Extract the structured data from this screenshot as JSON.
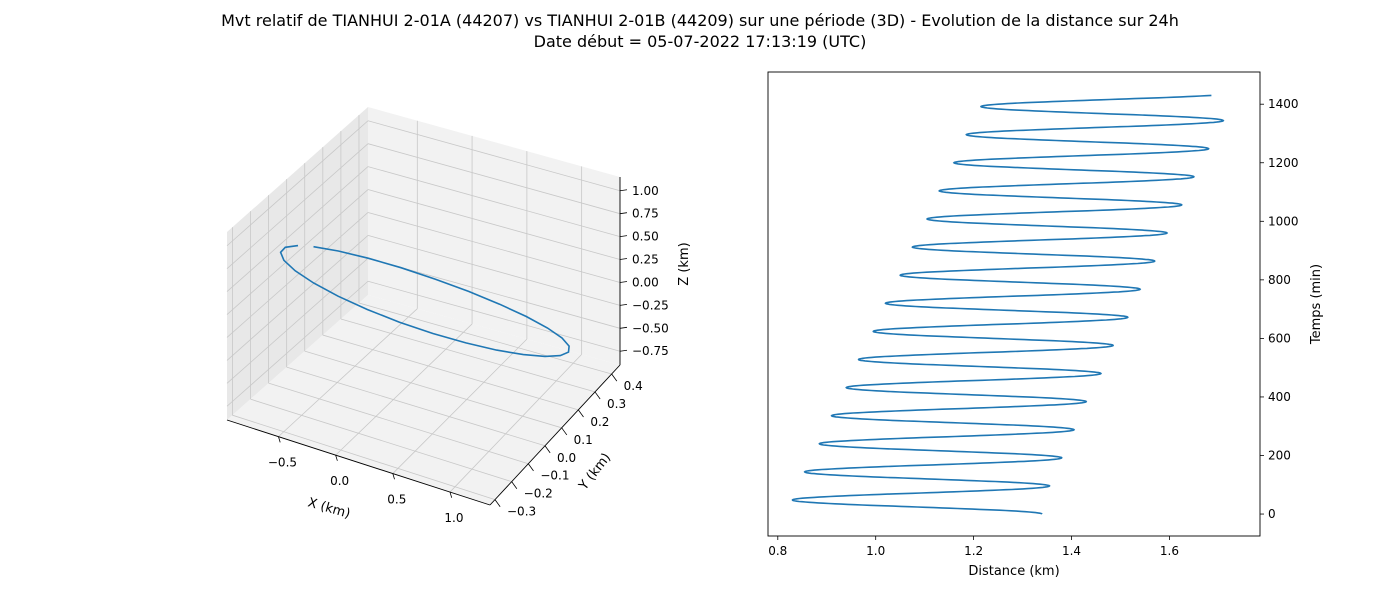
{
  "figure": {
    "title_line1": "Mvt relatif de TIANHUI 2-01A (44207) vs TIANHUI 2-01B (44209) sur une période (3D) - Evolution de la distance sur 24h",
    "title_line2": "Date début = 05-07-2022 17:13:19 (UTC)"
  },
  "colors": {
    "series": "#1f77b4",
    "pane": "#f2f2f2",
    "pane_dark": "#e8e8e8",
    "grid": "#c8c8c8"
  },
  "chart_data": [
    {
      "type": "line3d",
      "xlabel": "X (km)",
      "ylabel": "Y (km)",
      "zlabel": "Z (km)",
      "xlim": [
        -0.95,
        1.35
      ],
      "ylim": [
        -0.33,
        0.45
      ],
      "zlim": [
        -0.9,
        1.15
      ],
      "xticks": [
        -0.5,
        0.0,
        0.5,
        1.0
      ],
      "xtick_labels": [
        "−0.5",
        "0.0",
        "0.5",
        "1.0"
      ],
      "yticks": [
        -0.3,
        -0.2,
        -0.1,
        0.0,
        0.1,
        0.2,
        0.3,
        0.4
      ],
      "ytick_labels": [
        "−0.3",
        "−0.2",
        "−0.1",
        "0.0",
        "0.1",
        "0.2",
        "0.3",
        "0.4"
      ],
      "zticks": [
        -0.75,
        -0.5,
        -0.25,
        0.0,
        0.25,
        0.5,
        0.75,
        1.0
      ],
      "ztick_labels": [
        "−0.75",
        "−0.50",
        "−0.25",
        "0.00",
        "0.25",
        "0.50",
        "0.75",
        "1.00"
      ],
      "orbit": {
        "center": [
          0.2,
          0.06,
          0.12
        ],
        "u": [
          -0.8,
          -0.27,
          0.8
        ],
        "v": [
          0.8,
          -0.24,
          0.85
        ],
        "points": 26,
        "gap_fraction": 0.03
      }
    },
    {
      "type": "line",
      "xlabel": "Distance (km)",
      "ylabel": "Temps (min)",
      "xlim": [
        0.78,
        1.785
      ],
      "ylim": [
        -75,
        1510
      ],
      "xticks": [
        0.8,
        1.0,
        1.2,
        1.4,
        1.6
      ],
      "xtick_labels": [
        "0.8",
        "1.0",
        "1.2",
        "1.4",
        "1.6"
      ],
      "yticks": [
        0,
        200,
        400,
        600,
        800,
        1000,
        1200,
        1400
      ],
      "ytick_labels": [
        "0",
        "200",
        "400",
        "600",
        "800",
        "1000",
        "1200",
        "1400"
      ],
      "t_range": [
        0,
        1430
      ],
      "period_min": 96,
      "left_extremes": [
        [
          48,
          0.83
        ],
        [
          144,
          0.855
        ],
        [
          240,
          0.885
        ],
        [
          336,
          0.91
        ],
        [
          432,
          0.94
        ],
        [
          528,
          0.965
        ],
        [
          624,
          0.995
        ],
        [
          720,
          1.02
        ],
        [
          816,
          1.05
        ],
        [
          912,
          1.075
        ],
        [
          1008,
          1.105
        ],
        [
          1104,
          1.13
        ],
        [
          1200,
          1.16
        ],
        [
          1296,
          1.185
        ],
        [
          1392,
          1.215
        ]
      ],
      "right_extremes": [
        [
          0,
          1.34
        ],
        [
          96,
          1.355
        ],
        [
          192,
          1.38
        ],
        [
          288,
          1.405
        ],
        [
          384,
          1.43
        ],
        [
          480,
          1.46
        ],
        [
          576,
          1.485
        ],
        [
          672,
          1.515
        ],
        [
          768,
          1.54
        ],
        [
          864,
          1.57
        ],
        [
          960,
          1.595
        ],
        [
          1056,
          1.625
        ],
        [
          1152,
          1.65
        ],
        [
          1248,
          1.68
        ],
        [
          1344,
          1.71
        ],
        [
          1440,
          1.74
        ]
      ]
    }
  ]
}
